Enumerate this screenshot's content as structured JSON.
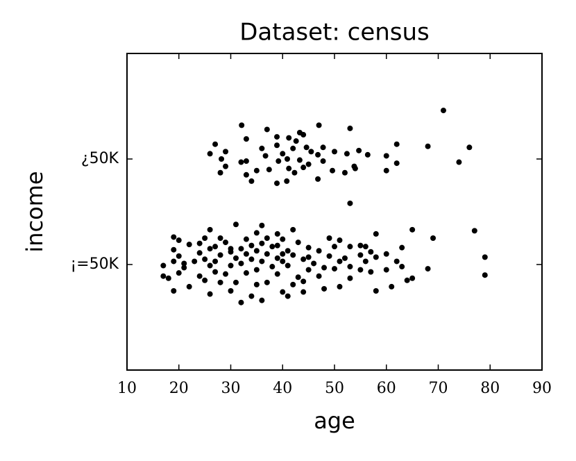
{
  "chart_data": {
    "type": "scatter",
    "title": "Dataset: census",
    "x_label": "age",
    "y_label": "income",
    "color": "#000000",
    "xlim": [
      10,
      90
    ],
    "xticks": [
      10,
      20,
      30,
      40,
      50,
      60,
      70,
      80,
      90
    ],
    "ylim": [
      -1,
      2
    ],
    "yticks": [
      {
        "value": 0,
        "label": "¡=50K"
      },
      {
        "value": 1,
        "label": "¿50K"
      }
    ],
    "x": [
      71,
      32.1,
      37,
      47,
      53,
      43.3,
      44,
      38.9,
      41.2,
      33,
      42.6,
      27,
      62,
      68,
      76,
      36,
      38.9,
      42,
      44.6,
      47.8,
      50,
      54.7,
      29,
      26,
      36.7,
      40,
      45.5,
      46.8,
      56.4,
      60,
      52.4,
      28.2,
      33,
      32,
      39.2,
      40.9,
      43.3,
      47.8,
      45,
      62,
      74,
      53.8,
      29,
      35,
      37.4,
      41.2,
      44,
      49.6,
      54,
      60,
      28,
      33,
      52,
      42.3,
      34,
      38.9,
      40.8,
      46.8,
      53,
      32,
      36,
      34,
      41,
      44,
      26,
      30,
      19,
      58,
      48,
      40,
      22,
      28,
      35,
      42,
      51,
      61,
      64,
      65,
      25,
      31,
      37,
      44,
      53,
      47,
      17,
      18,
      20,
      24,
      29,
      33,
      39,
      43,
      57,
      79,
      27,
      35,
      45,
      50,
      55,
      60,
      68,
      17,
      21,
      26,
      30,
      38,
      41,
      48,
      53,
      63,
      19,
      23,
      27,
      32,
      36,
      40,
      46,
      51,
      56,
      62,
      25,
      31,
      34,
      39,
      44,
      52,
      58,
      79,
      20,
      28,
      33,
      37,
      42,
      49,
      55,
      24,
      30,
      35,
      41,
      47,
      57,
      19,
      26,
      32,
      38,
      45,
      53,
      56,
      63,
      22,
      27,
      34,
      39,
      50,
      55,
      60,
      24,
      29,
      36,
      43,
      19,
      25,
      28,
      33,
      37,
      40,
      49,
      51,
      69,
      26,
      35,
      39,
      42,
      58,
      65,
      77,
      31,
      36,
      20,
      30,
      40,
      21,
      45
    ],
    "values": [
      1.46,
      1.32,
      1.28,
      1.32,
      1.29,
      1.25,
      1.23,
      1.21,
      1.2,
      1.19,
      1.17,
      1.14,
      1.14,
      1.12,
      1.11,
      1.1,
      1.13,
      1.1,
      1.11,
      1.11,
      1.07,
      1.08,
      1.07,
      1.05,
      1.03,
      1.05,
      1.07,
      1.04,
      1.04,
      1.03,
      1.05,
      1.0,
      0.98,
      0.97,
      0.98,
      1.0,
      0.99,
      0.98,
      0.95,
      0.96,
      0.97,
      0.93,
      0.93,
      0.89,
      0.9,
      0.91,
      0.92,
      0.89,
      0.91,
      0.89,
      0.87,
      0.85,
      0.87,
      0.87,
      0.79,
      0.77,
      0.79,
      0.81,
      0.58,
      -0.36,
      -0.34,
      -0.3,
      -0.3,
      -0.26,
      -0.28,
      -0.25,
      -0.25,
      -0.25,
      -0.23,
      -0.26,
      -0.21,
      -0.17,
      -0.19,
      -0.19,
      -0.21,
      -0.21,
      -0.15,
      -0.13,
      -0.15,
      -0.17,
      -0.17,
      -0.16,
      -0.13,
      -0.11,
      -0.11,
      -0.13,
      -0.08,
      -0.11,
      -0.09,
      -0.08,
      -0.09,
      -0.12,
      -0.07,
      -0.1,
      -0.07,
      -0.05,
      -0.05,
      -0.04,
      -0.05,
      -0.05,
      -0.04,
      -0.01,
      -0.03,
      -0.01,
      -0.01,
      -0.02,
      -0.01,
      -0.03,
      -0.02,
      -0.02,
      0.03,
      0.03,
      0.03,
      0.01,
      0.03,
      0.03,
      0.01,
      0.03,
      0.03,
      0.03,
      0.05,
      0.06,
      0.05,
      0.06,
      0.05,
      0.06,
      0.07,
      0.07,
      0.08,
      0.09,
      0.1,
      0.1,
      0.09,
      0.08,
      0.09,
      0.11,
      0.12,
      0.13,
      0.13,
      0.13,
      0.12,
      0.14,
      0.15,
      0.15,
      0.17,
      0.16,
      0.17,
      0.17,
      0.16,
      0.19,
      0.17,
      0.18,
      0.18,
      0.17,
      0.18,
      0.1,
      0.2,
      0.21,
      0.2,
      0.21,
      0.26,
      0.25,
      0.25,
      0.24,
      0.25,
      0.24,
      0.25,
      0.23,
      0.25,
      0.33,
      0.3,
      0.29,
      0.33,
      0.29,
      0.33,
      0.32,
      0.38,
      0.37,
      0.23,
      0.15,
      0.1,
      0.01,
      0.07
    ]
  }
}
